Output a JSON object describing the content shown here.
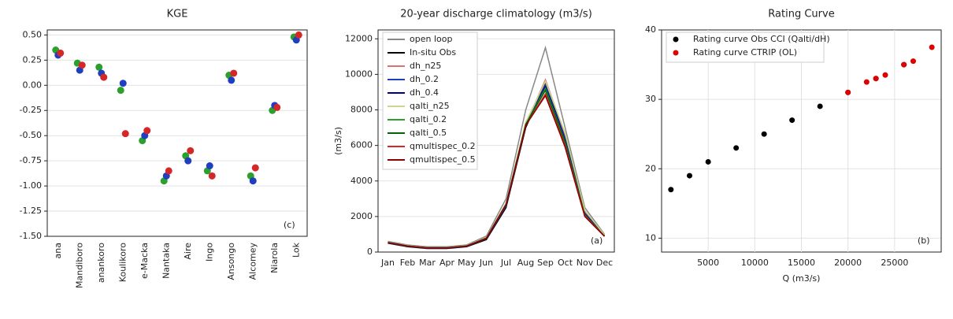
{
  "chart_data": [
    {
      "type": "dot",
      "title": "KGE",
      "annotation": "(c)",
      "categories": [
        "ana",
        "Mandiboro",
        "anankoro",
        "Koulikoro",
        "e-Macka",
        "Nantaka",
        "Aire",
        "Ingo",
        "Ansongo",
        "Alcomey",
        "Niarola",
        "Lok"
      ],
      "series": [
        {
          "color": "#2ca02c",
          "values": [
            0.35,
            0.22,
            0.18,
            -0.05,
            -0.55,
            -0.95,
            -0.7,
            -0.85,
            0.1,
            -0.9,
            -0.25,
            0.48
          ]
        },
        {
          "color": "#1f3fbf",
          "values": [
            0.3,
            0.15,
            0.12,
            0.02,
            -0.5,
            -0.9,
            -0.75,
            -0.8,
            0.05,
            -0.95,
            -0.2,
            0.45
          ]
        },
        {
          "color": "#d62728",
          "values": [
            0.32,
            0.2,
            0.08,
            -0.48,
            -0.45,
            -0.85,
            -0.65,
            -0.9,
            0.12,
            -0.82,
            -0.22,
            0.5
          ]
        }
      ],
      "ylim": [
        -1.5,
        0.55
      ],
      "yticks": [
        {
          "value": -1.5,
          "label": "-1.50"
        },
        {
          "value": -1.25,
          "label": "-1.25"
        },
        {
          "value": -1.0,
          "label": "-1.00"
        },
        {
          "value": -0.75,
          "label": "-0.75"
        },
        {
          "value": -0.5,
          "label": "-0.50"
        },
        {
          "value": -0.25,
          "label": "-0.25"
        },
        {
          "value": 0,
          "label": "0.00"
        },
        {
          "value": 0.25,
          "label": "0.25"
        },
        {
          "value": 0.5,
          "label": "0.50"
        }
      ],
      "grid": true
    },
    {
      "type": "line",
      "title": "20-year discharge climatology (m3/s)",
      "ylabel": "(m3/s)",
      "annotation": "(a)",
      "categories": [
        "Jan",
        "Feb",
        "Mar",
        "Apr",
        "May",
        "Jun",
        "Jul",
        "Aug",
        "Sep",
        "Oct",
        "Nov",
        "Dec"
      ],
      "series": [
        {
          "name": "open loop",
          "color": "#888888",
          "values": [
            600,
            400,
            300,
            300,
            400,
            900,
            3000,
            8000,
            11500,
            7000,
            2500,
            1000
          ]
        },
        {
          "name": "In-situ Obs",
          "color": "#000000",
          "values": [
            500,
            300,
            200,
            200,
            300,
            700,
            2500,
            7000,
            9500,
            6500,
            2200,
            900
          ]
        },
        {
          "name": "dh_n25",
          "color": "#e07070",
          "values": [
            550,
            350,
            250,
            250,
            350,
            800,
            2700,
            7200,
            9700,
            6600,
            2300,
            950
          ]
        },
        {
          "name": "dh_0.2",
          "color": "#1f3fbf",
          "values": [
            520,
            320,
            220,
            220,
            320,
            750,
            2600,
            7100,
            9400,
            6400,
            2200,
            920
          ]
        },
        {
          "name": "dh_0.4",
          "color": "#000080",
          "values": [
            530,
            330,
            230,
            230,
            330,
            760,
            2650,
            7150,
            9300,
            6300,
            2150,
            910
          ]
        },
        {
          "name": "qalti_n25",
          "color": "#c8d88a",
          "values": [
            560,
            360,
            260,
            260,
            360,
            820,
            2750,
            7300,
            9600,
            6700,
            2350,
            960
          ]
        },
        {
          "name": "qalti_0.2",
          "color": "#2ca02c",
          "values": [
            540,
            340,
            240,
            240,
            340,
            780,
            2680,
            7180,
            9200,
            6200,
            2100,
            900
          ]
        },
        {
          "name": "qalti_0.5",
          "color": "#006400",
          "values": [
            545,
            345,
            245,
            245,
            345,
            790,
            2690,
            7190,
            9100,
            6150,
            2080,
            895
          ]
        },
        {
          "name": "qmultispec_0.2",
          "color": "#d62728",
          "values": [
            535,
            335,
            235,
            235,
            335,
            770,
            2660,
            7120,
            8900,
            6000,
            2050,
            890
          ]
        },
        {
          "name": "qmultispec_0.5",
          "color": "#8b0000",
          "values": [
            538,
            338,
            238,
            238,
            338,
            772,
            2670,
            7130,
            8800,
            5900,
            2000,
            880
          ]
        }
      ],
      "ylim": [
        0,
        12500
      ],
      "yticks": [
        0,
        2000,
        4000,
        6000,
        8000,
        10000,
        12000
      ],
      "grid": true
    },
    {
      "type": "scatter",
      "title": "Rating Curve",
      "xlabel": "Q (m3/s)",
      "annotation": "(b)",
      "series": [
        {
          "name": "Rating curve Obs CCI (Qalti/dH)",
          "color": "#000000",
          "x": [
            1000,
            3000,
            5000,
            8000,
            11000,
            14000,
            17000,
            20000,
            23000,
            26000
          ],
          "values": [
            17,
            19,
            21,
            23,
            25,
            27,
            29,
            31,
            33,
            35
          ]
        },
        {
          "name": "Rating curve CTRIP (OL)",
          "color": "#e00000",
          "x": [
            20000,
            22000,
            23000,
            24000,
            26000,
            27000,
            29000
          ],
          "values": [
            31,
            32.5,
            33,
            33.5,
            35,
            35.5,
            37.5
          ]
        }
      ],
      "xlim": [
        0,
        30000
      ],
      "xticks": [
        5000,
        10000,
        15000,
        20000,
        25000
      ],
      "ylim": [
        8,
        40
      ],
      "yticks": [
        10,
        20,
        30,
        40
      ],
      "grid": true
    }
  ]
}
